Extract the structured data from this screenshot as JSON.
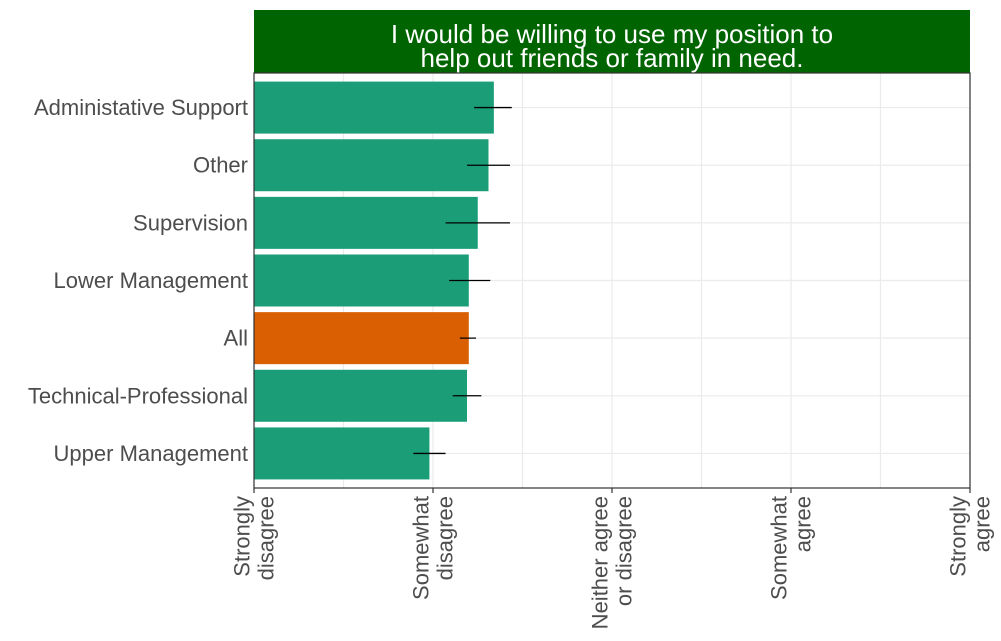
{
  "chart_data": {
    "type": "bar",
    "orientation": "horizontal",
    "title_lines": [
      "I would be willing to use my position to",
      "help out friends or family in need."
    ],
    "categories": [
      "Administative Support",
      "Other",
      "Supervision",
      "Lower Management",
      "All",
      "Technical-Professional",
      "Upper Management"
    ],
    "values": [
      2.34,
      2.31,
      2.25,
      2.2,
      2.2,
      2.19,
      1.98
    ],
    "error_low": [
      2.23,
      2.19,
      2.07,
      2.09,
      2.15,
      2.11,
      1.89
    ],
    "error_high": [
      2.44,
      2.43,
      2.43,
      2.32,
      2.24,
      2.27,
      2.07
    ],
    "highlight_category": "All",
    "xlim": [
      1,
      5
    ],
    "x_ticks": [
      {
        "value": 1,
        "lines": [
          "Strongly",
          "disagree"
        ]
      },
      {
        "value": 2,
        "lines": [
          "Somewhat",
          "disagree"
        ]
      },
      {
        "value": 3,
        "lines": [
          "Neither agree",
          "or disagree"
        ]
      },
      {
        "value": 4,
        "lines": [
          "Somewhat",
          "agree"
        ]
      },
      {
        "value": 5,
        "lines": [
          "Strongly",
          "agree"
        ]
      }
    ],
    "grid": true,
    "colors": {
      "bar": "#1b9e77",
      "highlight": "#d95f02",
      "title_background": "#006400",
      "title_text": "#ffffff",
      "error_bar": "#000000",
      "grid": "#ebebeb",
      "panel_border": "#333333",
      "label_text": "#4d4d4d"
    }
  }
}
